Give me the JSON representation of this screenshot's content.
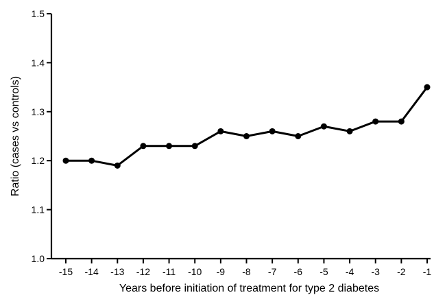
{
  "chart_data": {
    "type": "line",
    "title": "",
    "xlabel": "Years before initiation of treatment for type 2 diabetes",
    "ylabel": "Ratio (cases vs controls)",
    "x": [
      -15,
      -14,
      -13,
      -12,
      -11,
      -10,
      -9,
      -8,
      -7,
      -6,
      -5,
      -4,
      -3,
      -2,
      -1
    ],
    "x_tick_labels": [
      "-15",
      "-14",
      "-13",
      "-12",
      "-11",
      "-10",
      "-9",
      "-8",
      "-7",
      "-6",
      "-5",
      "-4",
      "-3",
      "-2",
      "-1"
    ],
    "series": [
      {
        "values": [
          1.2,
          1.2,
          1.19,
          1.23,
          1.23,
          1.23,
          1.26,
          1.25,
          1.26,
          1.25,
          1.27,
          1.26,
          1.28,
          1.28,
          1.35
        ]
      }
    ],
    "ylim": [
      1.0,
      1.5
    ],
    "y_ticks": [
      1.0,
      1.1,
      1.2,
      1.3,
      1.4,
      1.5
    ],
    "y_tick_labels": [
      "1.0",
      "1.1",
      "1.2",
      "1.3",
      "1.4",
      "1.5"
    ],
    "grid": false,
    "legend": "none",
    "colors": {
      "line": "#000000",
      "marker": "#000000"
    }
  }
}
